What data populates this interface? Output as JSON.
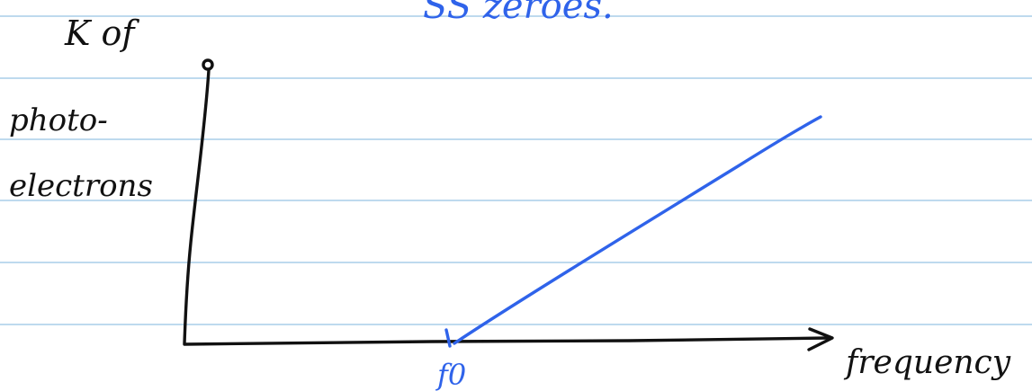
{
  "notes": {
    "top_text": "SS zeroes.",
    "y_label_line1": "K of",
    "y_label_line2": "photo-",
    "y_label_line3": "electrons",
    "x_label": "frequency",
    "threshold_label": "f0"
  },
  "colors": {
    "paper": "#ffffff",
    "rule_line": "#a9cde9",
    "black_ink": "#111111",
    "blue_ink": "#2f63ea"
  }
}
